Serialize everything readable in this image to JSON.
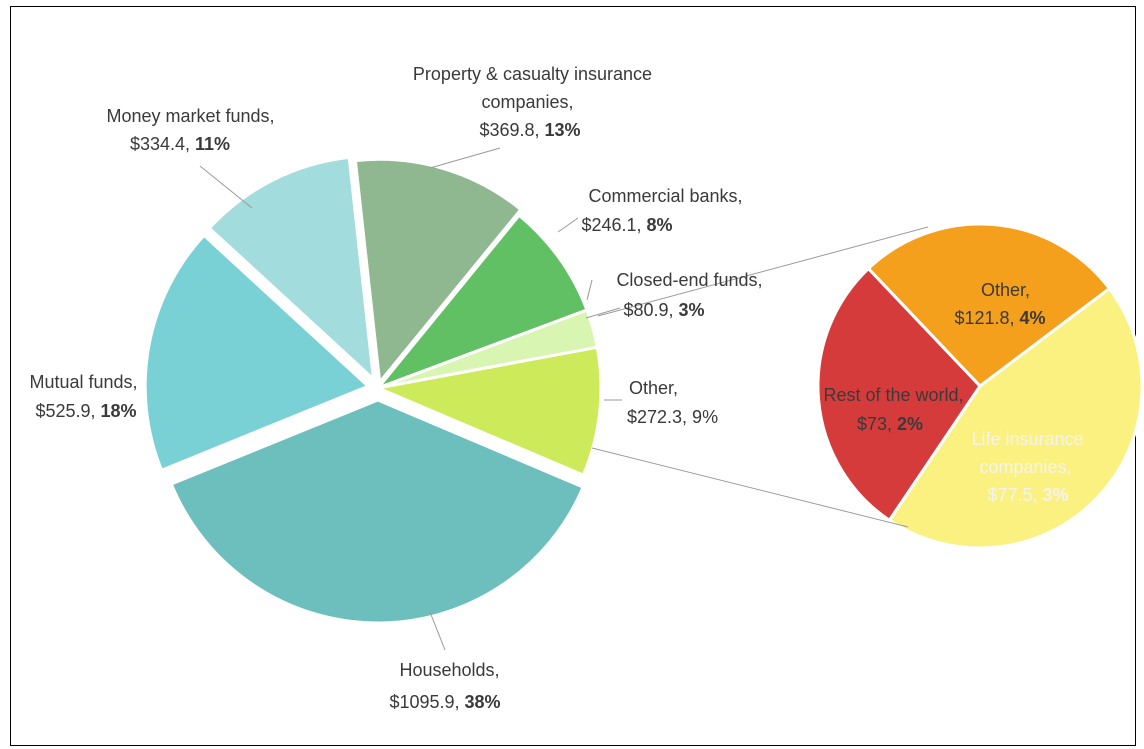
{
  "chart_data": {
    "type": "pie",
    "main_pie": {
      "slices": [
        {
          "label": "Households",
          "value": 1095.9,
          "value_text": "$1095.9",
          "pct_text": "38%",
          "pct_bold": true,
          "color": "#6dbfbe"
        },
        {
          "label": "Mutual funds",
          "value": 525.9,
          "value_text": "$525.9",
          "pct_text": "18%",
          "pct_bold": true,
          "color": "#79d1d6"
        },
        {
          "label": "Money market funds",
          "value": 334.4,
          "value_text": "$334.4",
          "pct_text": "11%",
          "pct_bold": true,
          "color": "#a2dcdc"
        },
        {
          "label": "Property & casualty insurance companies",
          "value": 369.8,
          "value_text": "$369.8",
          "pct_text": "13%",
          "pct_bold": true,
          "color": "#8fb890"
        },
        {
          "label": "Commercial banks",
          "value": 246.1,
          "value_text": "$246.1",
          "pct_text": "8%",
          "pct_bold": true,
          "color": "#62c064"
        },
        {
          "label": "Closed-end funds",
          "value": 80.9,
          "value_text": "$80.9",
          "pct_text": "3%",
          "pct_bold": true,
          "color": "#d8f6b2"
        },
        {
          "label": "Other",
          "value": 272.3,
          "value_text": "$272.3",
          "pct_text": "9%",
          "pct_bold": false,
          "color": "#cdea5a"
        }
      ]
    },
    "detail_pie": {
      "breakdown_of": "Other",
      "slices": [
        {
          "label": "Other",
          "value": 121.8,
          "value_text": "$121.8",
          "pct_text": "4%",
          "color": "#faf181"
        },
        {
          "label": "Life insurance companies",
          "value": 77.5,
          "value_text": "$77.5,",
          "pct_text": "3%",
          "color": "#d63b3b"
        },
        {
          "label": "Rest of the world",
          "value": 73,
          "value_text": "$73",
          "pct_text": "2%",
          "color": "#f4a01c"
        }
      ]
    },
    "labels": {
      "households": {
        "line1": "Households,",
        "value": "$1095.9,",
        "pct": "38%"
      },
      "mutual_funds": {
        "line1": "Mutual funds,",
        "value": "$525.9,",
        "pct": "18%"
      },
      "money_market": {
        "line1": "Money market funds,",
        "value": "$334.4,",
        "pct": "11%"
      },
      "property_casualty": {
        "line1": "Property & casualty insurance",
        "line2": "companies,",
        "value": "$369.8,",
        "pct": "13%"
      },
      "commercial_banks": {
        "line1": "Commercial banks,",
        "value": "$246.1,",
        "pct": "8%"
      },
      "closed_end": {
        "line1": "Closed-end funds,",
        "value": "$80.9,",
        "pct": "3%"
      },
      "other_main": {
        "line1": "Other,",
        "value_pct": "$272.3, 9%"
      },
      "detail_other": {
        "line1": "Other,",
        "value": "$121.8,",
        "pct": "4%"
      },
      "detail_rest": {
        "line1": "Rest of the world,",
        "value": "$73,",
        "pct": "2%"
      },
      "detail_life": {
        "line1": "Life insurance",
        "line2": "companies,",
        "value": "$77.5,",
        "pct": "3%"
      }
    }
  }
}
